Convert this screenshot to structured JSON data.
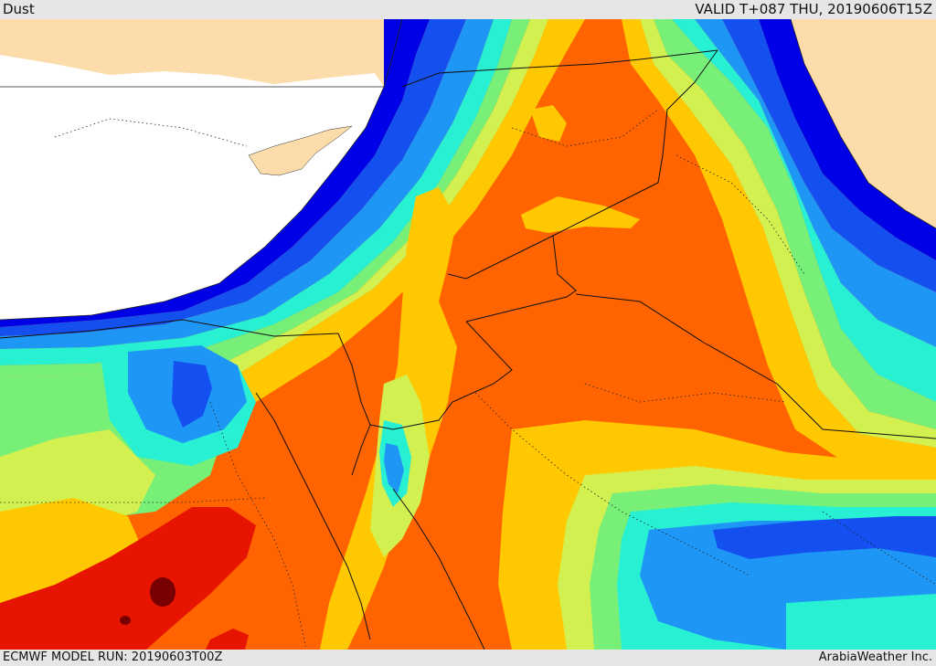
{
  "header": {
    "title": "Dust",
    "valid": "VALID T+087 THU, 20190606T15Z"
  },
  "footer": {
    "model_run": "ECMWF MODEL RUN: 20190603T00Z",
    "credit": "ArabiaWeather Inc."
  },
  "legend_colors": {
    "land": "#fddcac",
    "sea": "#ffffff",
    "band_1": "#0000e6",
    "band_2": "#1450f0",
    "band_3": "#1e96f5",
    "band_4": "#28f0d2",
    "band_5": "#78f078",
    "band_6": "#d2f050",
    "band_7": "#ffc800",
    "band_8": "#ff6400",
    "band_9": "#e61400",
    "band_10": "#780000"
  }
}
